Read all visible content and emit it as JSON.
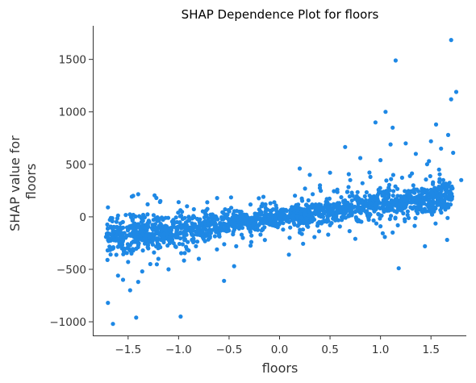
{
  "chart_data": {
    "type": "scatter",
    "title": "SHAP Dependence Plot for floors",
    "xlabel": "floors",
    "ylabel": [
      "SHAP value for",
      "floors"
    ],
    "xlim": [
      -1.85,
      1.85
    ],
    "ylim": [
      -1130,
      1820
    ],
    "xticks": [
      -1.5,
      -1.0,
      -0.5,
      0.0,
      0.5,
      1.0,
      1.5
    ],
    "xtick_labels": [
      "−1.5",
      "−1.0",
      "−0.5",
      "0.0",
      "0.5",
      "1.0",
      "1.5"
    ],
    "yticks": [
      -1000,
      -500,
      0,
      500,
      1000,
      1500
    ],
    "ytick_labels": [
      "−1000",
      "−500",
      "0",
      "500",
      "1000",
      "1500"
    ],
    "grid": false,
    "point_color": "#1e88e5",
    "trend": {
      "x_min": -1.72,
      "x_max": 1.72,
      "slope": 115,
      "intercept": 0
    },
    "series": [
      {
        "points": [
          [
            1.7,
            1685
          ],
          [
            1.15,
            1490
          ],
          [
            1.75,
            1190
          ],
          [
            1.05,
            1000
          ],
          [
            1.7,
            1120
          ],
          [
            0.95,
            900
          ],
          [
            1.12,
            850
          ],
          [
            1.55,
            880
          ],
          [
            1.67,
            780
          ],
          [
            1.5,
            720
          ],
          [
            1.25,
            700
          ],
          [
            1.1,
            690
          ],
          [
            0.65,
            665
          ],
          [
            1.6,
            650
          ],
          [
            1.72,
            610
          ],
          [
            1.35,
            600
          ],
          [
            0.8,
            560
          ],
          [
            1.0,
            540
          ],
          [
            1.48,
            530
          ],
          [
            0.2,
            460
          ],
          [
            0.5,
            420
          ],
          [
            0.3,
            400
          ],
          [
            0.9,
            380
          ],
          [
            0.7,
            350
          ],
          [
            0.4,
            300
          ],
          [
            -1.45,
            200
          ],
          [
            -1.4,
            215
          ],
          [
            -1.22,
            180
          ],
          [
            -1.0,
            140
          ],
          [
            -0.48,
            185
          ],
          [
            -1.7,
            90
          ],
          [
            -1.18,
            150
          ],
          [
            -0.18,
            100
          ],
          [
            1.8,
            350
          ],
          [
            1.58,
            450
          ],
          [
            1.0,
            -90
          ],
          [
            1.12,
            -150
          ],
          [
            1.18,
            -490
          ],
          [
            1.44,
            -280
          ],
          [
            1.66,
            -220
          ],
          [
            0.75,
            -210
          ],
          [
            0.5,
            -80
          ],
          [
            0.1,
            -200
          ],
          [
            0.2,
            -150
          ],
          [
            -1.7,
            -820
          ],
          [
            -1.65,
            -1020
          ],
          [
            -1.42,
            -960
          ],
          [
            -0.98,
            -950
          ],
          [
            -1.48,
            -700
          ],
          [
            -1.4,
            -620
          ],
          [
            -1.55,
            -600
          ],
          [
            -1.36,
            -520
          ],
          [
            -1.28,
            -450
          ],
          [
            -0.55,
            -610
          ],
          [
            -0.45,
            -470
          ],
          [
            -0.8,
            -400
          ],
          [
            -1.1,
            -500
          ],
          [
            -1.2,
            -400
          ],
          [
            -1.6,
            -560
          ],
          [
            -1.5,
            -430
          ],
          [
            -0.62,
            -310
          ],
          [
            -0.28,
            -240
          ],
          [
            -0.9,
            -320
          ],
          [
            -1.3,
            -300
          ]
        ]
      }
    ]
  }
}
